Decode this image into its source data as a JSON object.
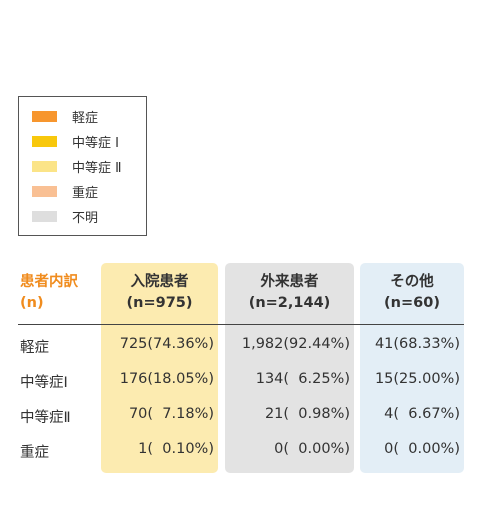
{
  "legend": [
    {
      "label": "軽症",
      "color": "#f7962e"
    },
    {
      "label": "中等症 Ⅰ",
      "color": "#f8c80c"
    },
    {
      "label": "中等症 Ⅱ",
      "color": "#fbe488"
    },
    {
      "label": "重症",
      "color": "#f9c094"
    },
    {
      "label": "不明",
      "color": "#dedede"
    }
  ],
  "colors": {
    "inpatient_bg": "#fcebb0",
    "outpatient_bg": "#e3e3e3",
    "other_bg": "#e3eef6",
    "category_header": "#f08c1e"
  },
  "chart_data": {
    "type": "table",
    "category_header": [
      "患者内訳",
      "(n)"
    ],
    "columns": [
      {
        "name": "入院患者",
        "n_label": "(n=975)"
      },
      {
        "name": "外来患者",
        "n_label": "(n=2,144)"
      },
      {
        "name": "その他",
        "n_label": "(n=60)"
      }
    ],
    "rows": [
      {
        "label": "軽症",
        "cells": [
          "725(74.36%)",
          "1,982(92.44%)",
          "41(68.33%)"
        ]
      },
      {
        "label": "中等症Ⅰ",
        "cells": [
          "176(18.05%)",
          "134(  6.25%)",
          "15(25.00%)"
        ]
      },
      {
        "label": "中等症Ⅱ",
        "cells": [
          "70(  7.18%)",
          "21(  0.98%)",
          "4(  6.67%)"
        ]
      },
      {
        "label": "重症",
        "cells": [
          "1(  0.10%)",
          "0(  0.00%)",
          "0(  0.00%)"
        ]
      }
    ]
  }
}
